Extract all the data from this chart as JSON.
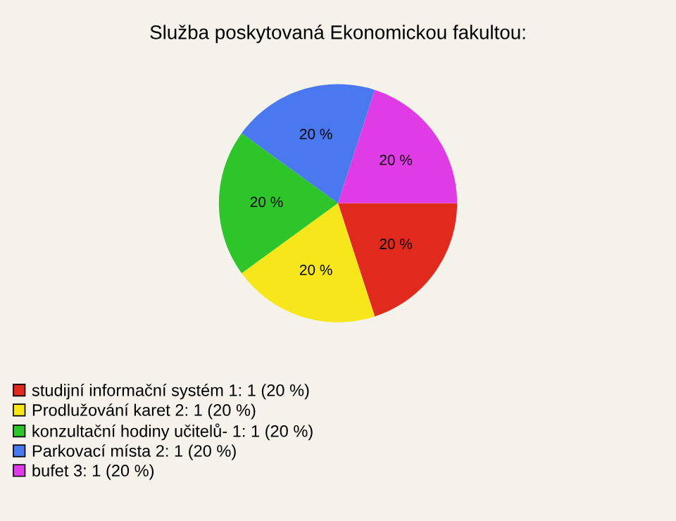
{
  "chart_data": {
    "type": "pie",
    "title": "Služba poskytovaná Ekonomickou fakultou:",
    "categories": [
      "studijní informační systém 1: 1 (20 %)",
      "Prodlužování karet 2: 1 (20 %)",
      "konzultační hodiny učitelů- 1: 1 (20 %)",
      "Parkovací místa 2: 1 (20 %)",
      "bufet 3: 1 (20 %)"
    ],
    "values": [
      20,
      20,
      20,
      20,
      20
    ],
    "value_labels": [
      "20 %",
      "20 %",
      "20 %",
      "20 %",
      "20 %"
    ],
    "colors": [
      "#e02a1e",
      "#f8e61c",
      "#2ec52a",
      "#4a78ee",
      "#e03ce6"
    ],
    "legend": "bottom left"
  }
}
